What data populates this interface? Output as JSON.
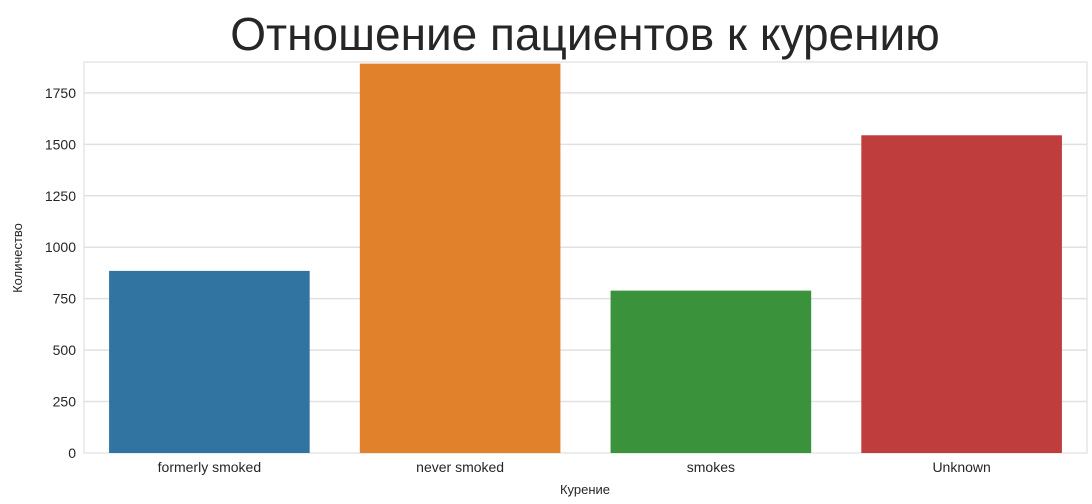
{
  "chart_data": {
    "type": "bar",
    "title": "Отношение пациентов к курению",
    "xlabel": "Курение",
    "ylabel": "Количество",
    "categories": [
      "formerly smoked",
      "never smoked",
      "smokes",
      "Unknown"
    ],
    "values": [
      885,
      1892,
      789,
      1544
    ],
    "colors": [
      "#3274a1",
      "#e1812c",
      "#3a923a",
      "#c03d3e"
    ],
    "ylim": [
      0,
      1900
    ],
    "yticks": [
      0,
      250,
      500,
      750,
      1000,
      1250,
      1500,
      1750
    ],
    "grid": true,
    "legend": false
  }
}
